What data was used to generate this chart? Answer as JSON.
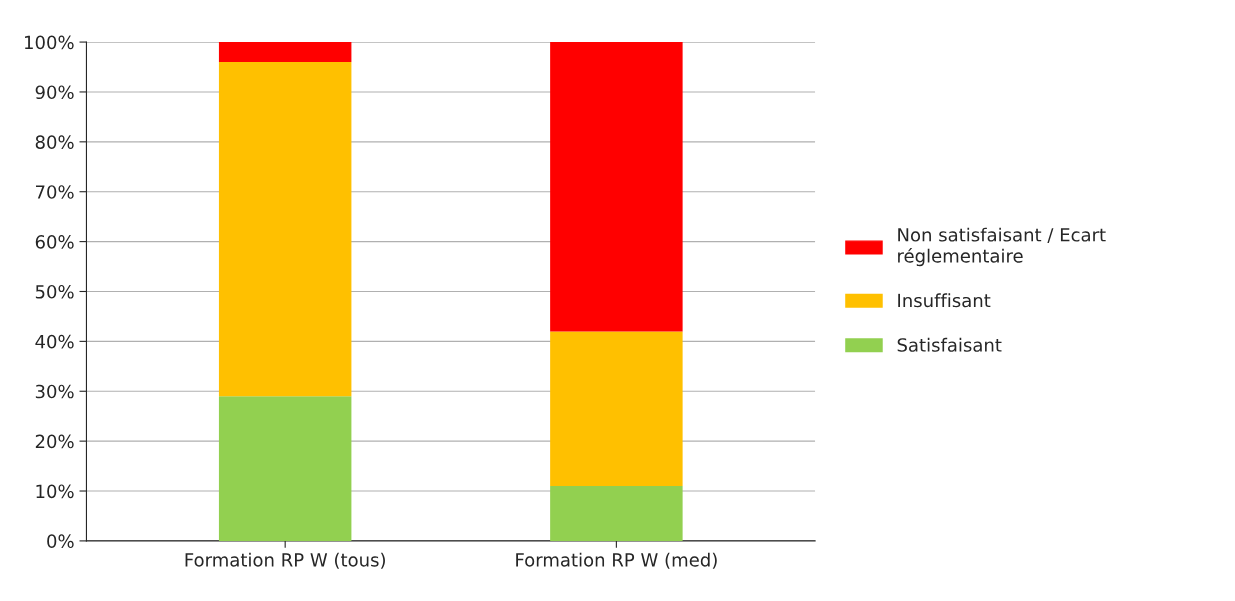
{
  "chart_data": {
    "type": "bar",
    "stacked": true,
    "categories": [
      "Formation RP W (tous)",
      "Formation RP W (med)"
    ],
    "series": [
      {
        "name": "Satisfaisant",
        "color": "#92d050",
        "values": [
          29,
          11
        ]
      },
      {
        "name": "Insuffisant",
        "color": "#ffc000",
        "values": [
          67,
          31
        ]
      },
      {
        "name": "Non satisfaisant / Ecart réglementaire",
        "color": "#ff0000",
        "values": [
          4,
          58
        ]
      }
    ],
    "ylim": [
      0,
      100
    ],
    "yticks": [
      {
        "value": 0,
        "label": "0%"
      },
      {
        "value": 10,
        "label": "10%"
      },
      {
        "value": 20,
        "label": "20%"
      },
      {
        "value": 30,
        "label": "30%"
      },
      {
        "value": 40,
        "label": "40%"
      },
      {
        "value": 50,
        "label": "50%"
      },
      {
        "value": 60,
        "label": "60%"
      },
      {
        "value": 70,
        "label": "70%"
      },
      {
        "value": 80,
        "label": "80%"
      },
      {
        "value": 90,
        "label": "90%"
      },
      {
        "value": 100,
        "label": "100%"
      }
    ],
    "grid": "y",
    "legend": "right"
  }
}
